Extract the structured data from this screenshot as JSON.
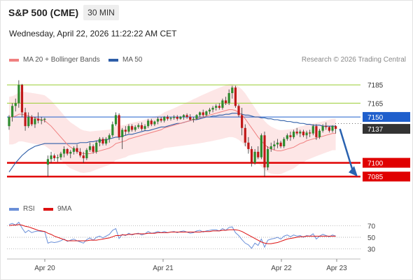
{
  "header": {
    "title": "S&P 500 (CME)",
    "timeframe": "30 MIN",
    "datetime": "Wednesday, April 22, 2026 11:22:22 AM CET",
    "research": "Research © 2026 Trading Central"
  },
  "legend": {
    "ma20": "MA 20 + Bollinger Bands",
    "ma50": "MA 50",
    "rsi": "RSI",
    "ma9": "9MA"
  },
  "colors": {
    "ma20": "#f08080",
    "bollinger_fill": "#fde3e3",
    "ma50": "#2e5ea8",
    "rsi": "#6a8fd8",
    "ma9": "#dd1111",
    "resistance": "#9acd32",
    "support": "#e00000",
    "pivot": "#1f5fcc",
    "last_price": "#333333",
    "candle_up": "#2e8b2e",
    "candle_down": "#c01818",
    "arrow": "#2a62b0"
  },
  "chart_data": [
    {
      "type": "candlestick",
      "x_ticks": [
        "Apr 20",
        "Apr 21",
        "Apr 22",
        "Apr 23"
      ],
      "ylim": [
        7060,
        7205
      ],
      "resistance_levels": [
        7185,
        7165
      ],
      "pivot": 7150,
      "last_price": 7137,
      "support_levels": [
        7100,
        7085
      ],
      "projection": {
        "from": 7137,
        "to": 7085
      },
      "candles": [
        {
          "o": 7140,
          "h": 7152,
          "l": 7136,
          "c": 7150
        },
        {
          "o": 7150,
          "h": 7165,
          "l": 7145,
          "c": 7162
        },
        {
          "o": 7162,
          "h": 7170,
          "l": 7156,
          "c": 7165
        },
        {
          "o": 7165,
          "h": 7190,
          "l": 7160,
          "c": 7185
        },
        {
          "o": 7185,
          "h": 7186,
          "l": 7150,
          "c": 7155
        },
        {
          "o": 7155,
          "h": 7160,
          "l": 7135,
          "c": 7140
        },
        {
          "o": 7140,
          "h": 7155,
          "l": 7138,
          "c": 7150
        },
        {
          "o": 7150,
          "h": 7152,
          "l": 7140,
          "c": 7142
        },
        {
          "o": 7142,
          "h": 7150,
          "l": 7138,
          "c": 7148
        },
        {
          "o": 7148,
          "h": 7155,
          "l": 7143,
          "c": 7146
        },
        {
          "o": 7146,
          "h": 7150,
          "l": 7142,
          "c": 7147
        },
        {
          "o": 7147,
          "h": 7149,
          "l": 7144,
          "c": 7148
        },
        {
          "o": 7098,
          "h": 7108,
          "l": 7085,
          "c": 7104
        },
        {
          "o": 7104,
          "h": 7112,
          "l": 7100,
          "c": 7108
        },
        {
          "o": 7108,
          "h": 7110,
          "l": 7102,
          "c": 7105
        },
        {
          "o": 7105,
          "h": 7109,
          "l": 7101,
          "c": 7106
        },
        {
          "o": 7106,
          "h": 7112,
          "l": 7103,
          "c": 7110
        },
        {
          "o": 7110,
          "h": 7118,
          "l": 7106,
          "c": 7115
        },
        {
          "o": 7115,
          "h": 7116,
          "l": 7108,
          "c": 7110
        },
        {
          "o": 7110,
          "h": 7114,
          "l": 7105,
          "c": 7112
        },
        {
          "o": 7112,
          "h": 7118,
          "l": 7109,
          "c": 7116
        },
        {
          "o": 7116,
          "h": 7120,
          "l": 7110,
          "c": 7112
        },
        {
          "o": 7112,
          "h": 7116,
          "l": 7106,
          "c": 7108
        },
        {
          "o": 7108,
          "h": 7112,
          "l": 7100,
          "c": 7105
        },
        {
          "o": 7105,
          "h": 7116,
          "l": 7103,
          "c": 7114
        },
        {
          "o": 7114,
          "h": 7122,
          "l": 7112,
          "c": 7118
        },
        {
          "o": 7118,
          "h": 7120,
          "l": 7110,
          "c": 7112
        },
        {
          "o": 7112,
          "h": 7124,
          "l": 7110,
          "c": 7122
        },
        {
          "o": 7122,
          "h": 7128,
          "l": 7118,
          "c": 7126
        },
        {
          "o": 7126,
          "h": 7128,
          "l": 7119,
          "c": 7121
        },
        {
          "o": 7121,
          "h": 7128,
          "l": 7119,
          "c": 7126
        },
        {
          "o": 7126,
          "h": 7132,
          "l": 7122,
          "c": 7130
        },
        {
          "o": 7130,
          "h": 7145,
          "l": 7128,
          "c": 7142
        },
        {
          "o": 7142,
          "h": 7155,
          "l": 7140,
          "c": 7152
        },
        {
          "o": 7152,
          "h": 7154,
          "l": 7125,
          "c": 7128
        },
        {
          "o": 7128,
          "h": 7138,
          "l": 7115,
          "c": 7136
        },
        {
          "o": 7136,
          "h": 7140,
          "l": 7130,
          "c": 7134
        },
        {
          "o": 7134,
          "h": 7142,
          "l": 7132,
          "c": 7140
        },
        {
          "o": 7140,
          "h": 7142,
          "l": 7134,
          "c": 7136
        },
        {
          "o": 7136,
          "h": 7141,
          "l": 7134,
          "c": 7139
        },
        {
          "o": 7139,
          "h": 7143,
          "l": 7137,
          "c": 7141
        },
        {
          "o": 7141,
          "h": 7144,
          "l": 7135,
          "c": 7137
        },
        {
          "o": 7137,
          "h": 7142,
          "l": 7135,
          "c": 7140
        },
        {
          "o": 7140,
          "h": 7148,
          "l": 7138,
          "c": 7146
        },
        {
          "o": 7146,
          "h": 7148,
          "l": 7140,
          "c": 7142
        },
        {
          "o": 7142,
          "h": 7146,
          "l": 7140,
          "c": 7145
        },
        {
          "o": 7145,
          "h": 7150,
          "l": 7142,
          "c": 7148
        },
        {
          "o": 7148,
          "h": 7150,
          "l": 7144,
          "c": 7146
        },
        {
          "o": 7146,
          "h": 7151,
          "l": 7144,
          "c": 7150
        },
        {
          "o": 7150,
          "h": 7152,
          "l": 7146,
          "c": 7148
        },
        {
          "o": 7148,
          "h": 7150,
          "l": 7146,
          "c": 7149
        },
        {
          "o": 7149,
          "h": 7152,
          "l": 7147,
          "c": 7150
        },
        {
          "o": 7150,
          "h": 7152,
          "l": 7146,
          "c": 7148
        },
        {
          "o": 7148,
          "h": 7151,
          "l": 7147,
          "c": 7150
        },
        {
          "o": 7150,
          "h": 7153,
          "l": 7147,
          "c": 7152
        },
        {
          "o": 7152,
          "h": 7154,
          "l": 7148,
          "c": 7150
        },
        {
          "o": 7150,
          "h": 7153,
          "l": 7146,
          "c": 7147
        },
        {
          "o": 7147,
          "h": 7150,
          "l": 7144,
          "c": 7148
        },
        {
          "o": 7148,
          "h": 7153,
          "l": 7147,
          "c": 7152
        },
        {
          "o": 7152,
          "h": 7156,
          "l": 7150,
          "c": 7155
        },
        {
          "o": 7155,
          "h": 7158,
          "l": 7150,
          "c": 7152
        },
        {
          "o": 7152,
          "h": 7157,
          "l": 7151,
          "c": 7156
        },
        {
          "o": 7156,
          "h": 7160,
          "l": 7153,
          "c": 7158
        },
        {
          "o": 7158,
          "h": 7162,
          "l": 7155,
          "c": 7160
        },
        {
          "o": 7160,
          "h": 7164,
          "l": 7157,
          "c": 7162
        },
        {
          "o": 7162,
          "h": 7165,
          "l": 7158,
          "c": 7160
        },
        {
          "o": 7160,
          "h": 7170,
          "l": 7158,
          "c": 7168
        },
        {
          "o": 7168,
          "h": 7172,
          "l": 7163,
          "c": 7165
        },
        {
          "o": 7165,
          "h": 7180,
          "l": 7163,
          "c": 7176
        },
        {
          "o": 7176,
          "h": 7184,
          "l": 7170,
          "c": 7182
        },
        {
          "o": 7182,
          "h": 7184,
          "l": 7160,
          "c": 7162
        },
        {
          "o": 7162,
          "h": 7164,
          "l": 7150,
          "c": 7152
        },
        {
          "o": 7152,
          "h": 7160,
          "l": 7130,
          "c": 7138
        },
        {
          "o": 7138,
          "h": 7142,
          "l": 7118,
          "c": 7122
        },
        {
          "o": 7122,
          "h": 7128,
          "l": 7110,
          "c": 7115
        },
        {
          "o": 7115,
          "h": 7118,
          "l": 7096,
          "c": 7100
        },
        {
          "o": 7100,
          "h": 7115,
          "l": 7098,
          "c": 7112
        },
        {
          "o": 7112,
          "h": 7118,
          "l": 7104,
          "c": 7106
        },
        {
          "o": 7106,
          "h": 7132,
          "l": 7104,
          "c": 7130
        },
        {
          "o": 7130,
          "h": 7134,
          "l": 7085,
          "c": 7095
        },
        {
          "o": 7095,
          "h": 7118,
          "l": 7092,
          "c": 7115
        },
        {
          "o": 7115,
          "h": 7122,
          "l": 7112,
          "c": 7118
        },
        {
          "o": 7118,
          "h": 7124,
          "l": 7114,
          "c": 7120
        },
        {
          "o": 7120,
          "h": 7126,
          "l": 7116,
          "c": 7122
        },
        {
          "o": 7122,
          "h": 7124,
          "l": 7116,
          "c": 7118
        },
        {
          "o": 7118,
          "h": 7128,
          "l": 7116,
          "c": 7126
        },
        {
          "o": 7126,
          "h": 7132,
          "l": 7124,
          "c": 7130
        },
        {
          "o": 7130,
          "h": 7134,
          "l": 7124,
          "c": 7128
        },
        {
          "o": 7128,
          "h": 7136,
          "l": 7126,
          "c": 7134
        },
        {
          "o": 7134,
          "h": 7138,
          "l": 7130,
          "c": 7132
        },
        {
          "o": 7132,
          "h": 7136,
          "l": 7128,
          "c": 7134
        },
        {
          "o": 7134,
          "h": 7136,
          "l": 7128,
          "c": 7130
        },
        {
          "o": 7130,
          "h": 7135,
          "l": 7126,
          "c": 7133
        },
        {
          "o": 7133,
          "h": 7136,
          "l": 7128,
          "c": 7132
        },
        {
          "o": 7132,
          "h": 7142,
          "l": 7130,
          "c": 7140
        },
        {
          "o": 7140,
          "h": 7142,
          "l": 7125,
          "c": 7128
        },
        {
          "o": 7128,
          "h": 7137,
          "l": 7126,
          "c": 7135
        },
        {
          "o": 7135,
          "h": 7142,
          "l": 7133,
          "c": 7140
        },
        {
          "o": 7140,
          "h": 7144,
          "l": 7136,
          "c": 7139
        },
        {
          "o": 7139,
          "h": 7140,
          "l": 7133,
          "c": 7135
        },
        {
          "o": 7135,
          "h": 7141,
          "l": 7133,
          "c": 7140
        },
        {
          "o": 7140,
          "h": 7141,
          "l": 7132,
          "c": 7137
        }
      ],
      "ma20": [
        7150,
        7150,
        7151,
        7153,
        7153,
        7152,
        7151,
        7150,
        7149,
        7148,
        7147,
        7146,
        7143,
        7140,
        7136,
        7132,
        7128,
        7124,
        7120,
        7117,
        7115,
        7113,
        7111,
        7110,
        7110,
        7110,
        7111,
        7112,
        7113,
        7114,
        7115,
        7116,
        7118,
        7121,
        7122,
        7123,
        7124,
        7126,
        7127,
        7128,
        7129,
        7130,
        7131,
        7132,
        7133,
        7134,
        7135,
        7136,
        7138,
        7139,
        7140,
        7141,
        7142,
        7143,
        7144,
        7145,
        7146,
        7147,
        7148,
        7149,
        7150,
        7151,
        7152,
        7153,
        7154,
        7155,
        7156,
        7157,
        7158,
        7158,
        7157,
        7155,
        7152,
        7148,
        7143,
        7138,
        7133,
        7128,
        7124,
        7120,
        7117,
        7115,
        7114,
        7113,
        7113,
        7114,
        7115,
        7116,
        7117,
        7119,
        7121,
        7122,
        7124,
        7125,
        7126,
        7127,
        7128,
        7129,
        7130,
        7131,
        7132,
        7132
      ],
      "ma50": [
        7090,
        7095,
        7100,
        7104,
        7108,
        7111,
        7114,
        7116,
        7118,
        7119,
        7120,
        7121,
        7121,
        7121,
        7121,
        7121,
        7121,
        7121,
        7121,
        7121,
        7121,
        7121,
        7122,
        7122,
        7122,
        7123,
        7123,
        7124,
        7124,
        7125,
        7125,
        7126,
        7127,
        7128,
        7128,
        7129,
        7130,
        7131,
        7131,
        7132,
        7133,
        7134,
        7135,
        7135,
        7136,
        7137,
        7138,
        7139,
        7139,
        7140,
        7141,
        7142,
        7143,
        7143,
        7144,
        7145,
        7146,
        7147,
        7147,
        7148,
        7149,
        7150,
        7150,
        7151,
        7151,
        7152,
        7152,
        7153,
        7153,
        7154,
        7154,
        7154,
        7153,
        7152,
        7152,
        7151,
        7150,
        7150,
        7149,
        7149,
        7148,
        7148,
        7147,
        7147,
        7146,
        7146,
        7145,
        7145,
        7144,
        7144,
        7143,
        7143,
        7142,
        7142,
        7141,
        7141,
        7141,
        7140,
        7140,
        7140,
        7140,
        7140
      ]
    },
    {
      "type": "line",
      "title": "RSI",
      "y_ticks": [
        70,
        50,
        30
      ],
      "ylim": [
        15,
        85
      ],
      "series": [
        {
          "name": "RSI",
          "values": [
            72,
            74,
            71,
            76,
            66,
            58,
            62,
            58,
            60,
            61,
            60,
            60,
            40,
            42,
            41,
            42,
            44,
            47,
            43,
            45,
            47,
            44,
            42,
            40,
            46,
            49,
            45,
            50,
            52,
            49,
            52,
            55,
            62,
            65,
            48,
            55,
            53,
            57,
            54,
            56,
            57,
            54,
            56,
            60,
            57,
            58,
            60,
            58,
            60,
            58,
            59,
            60,
            58,
            60,
            61,
            59,
            57,
            58,
            61,
            62,
            59,
            61,
            62,
            63,
            63,
            61,
            65,
            62,
            67,
            68,
            58,
            53,
            46,
            40,
            37,
            31,
            40,
            36,
            47,
            33,
            45,
            47,
            48,
            50,
            47,
            52,
            54,
            51,
            54,
            52,
            53,
            50,
            53,
            52,
            56,
            47,
            52,
            55,
            53,
            51,
            54,
            52
          ]
        },
        {
          "name": "9MA",
          "values": [
            70,
            71,
            71,
            72,
            71,
            69,
            68,
            66,
            64,
            62,
            61,
            60,
            57,
            55,
            52,
            50,
            48,
            46,
            44,
            44,
            44,
            44,
            44,
            44,
            44,
            45,
            45,
            45,
            46,
            47,
            48,
            49,
            51,
            53,
            53,
            54,
            54,
            55,
            55,
            56,
            56,
            56,
            56,
            57,
            57,
            57,
            58,
            58,
            58,
            58,
            59,
            59,
            59,
            59,
            59,
            59,
            59,
            59,
            59,
            59,
            60,
            60,
            60,
            61,
            61,
            61,
            62,
            62,
            63,
            63,
            63,
            62,
            60,
            57,
            54,
            51,
            48,
            45,
            42,
            40,
            39,
            39,
            40,
            41,
            43,
            45,
            47,
            48,
            49,
            50,
            51,
            51,
            52,
            52,
            52,
            52,
            52,
            52,
            52,
            52,
            52,
            52
          ]
        }
      ]
    }
  ]
}
